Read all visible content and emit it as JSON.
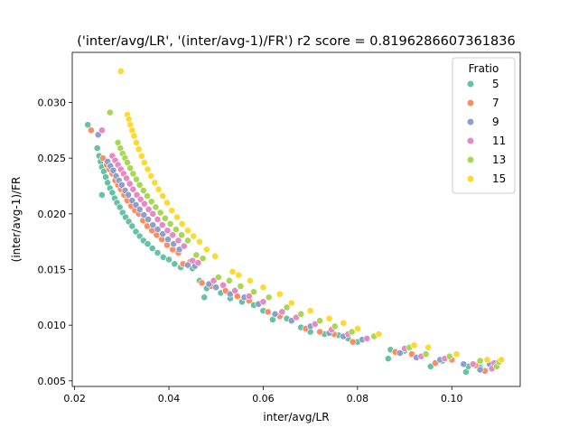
{
  "chart_data": {
    "type": "scatter",
    "title": "('inter/avg/LR', '(inter/avg-1)/FR') r2 score = 0.8196286607361836",
    "xlabel": "inter/avg/LR",
    "ylabel": "(inter/avg-1)/FR",
    "xlim": [
      0.0195,
      0.1145
    ],
    "ylim": [
      0.0045,
      0.0345
    ],
    "xticks": [
      0.02,
      0.04,
      0.06,
      0.08,
      0.1
    ],
    "xtick_labels": [
      "0.02",
      "0.04",
      "0.06",
      "0.08",
      "0.10"
    ],
    "yticks": [
      0.005,
      0.01,
      0.015,
      0.02,
      0.025,
      0.03
    ],
    "ytick_labels": [
      "0.005",
      "0.010",
      "0.015",
      "0.020",
      "0.025",
      "0.030"
    ],
    "grid": false,
    "legend": {
      "title": "Fratio",
      "placement": "top-right"
    },
    "series": [
      {
        "name": "5",
        "color": "#66c2a5",
        "points": [
          [
            0.0228,
            0.028
          ],
          [
            0.0248,
            0.0259
          ],
          [
            0.0252,
            0.0252
          ],
          [
            0.0255,
            0.0247
          ],
          [
            0.0258,
            0.0242
          ],
          [
            0.0262,
            0.0238
          ],
          [
            0.0266,
            0.0233
          ],
          [
            0.027,
            0.0228
          ],
          [
            0.0275,
            0.0223
          ],
          [
            0.028,
            0.0219
          ],
          [
            0.0258,
            0.0217
          ],
          [
            0.0285,
            0.0214
          ],
          [
            0.029,
            0.021
          ],
          [
            0.0296,
            0.0206
          ],
          [
            0.0302,
            0.0201
          ],
          [
            0.0308,
            0.0197
          ],
          [
            0.0315,
            0.0193
          ],
          [
            0.0322,
            0.0189
          ],
          [
            0.033,
            0.0184
          ],
          [
            0.0338,
            0.018
          ],
          [
            0.0346,
            0.0176
          ],
          [
            0.0355,
            0.0173
          ],
          [
            0.0365,
            0.0169
          ],
          [
            0.0376,
            0.0165
          ],
          [
            0.0388,
            0.0161
          ],
          [
            0.04,
            0.0159
          ],
          [
            0.0412,
            0.0155
          ],
          [
            0.0425,
            0.0152
          ],
          [
            0.045,
            0.0151
          ],
          [
            0.0465,
            0.014
          ],
          [
            0.048,
            0.0133
          ],
          [
            0.0475,
            0.0125
          ],
          [
            0.051,
            0.0129
          ],
          [
            0.053,
            0.0124
          ],
          [
            0.0555,
            0.0121
          ],
          [
            0.058,
            0.0118
          ],
          [
            0.06,
            0.0113
          ],
          [
            0.062,
            0.0105
          ],
          [
            0.065,
            0.0106
          ],
          [
            0.068,
            0.0098
          ],
          [
            0.07,
            0.0094
          ],
          [
            0.073,
            0.0092
          ],
          [
            0.076,
            0.0091
          ],
          [
            0.078,
            0.0088
          ],
          [
            0.08,
            0.0085
          ],
          [
            0.0865,
            0.007
          ],
          [
            0.087,
            0.0078
          ],
          [
            0.09,
            0.0077
          ],
          [
            0.0955,
            0.0063
          ],
          [
            0.098,
            0.0068
          ],
          [
            0.103,
            0.0058
          ],
          [
            0.1035,
            0.0063
          ],
          [
            0.106,
            0.0062
          ]
        ]
      },
      {
        "name": "7",
        "color": "#fc8d62",
        "points": [
          [
            0.0235,
            0.0275
          ],
          [
            0.026,
            0.025
          ],
          [
            0.0268,
            0.0244
          ],
          [
            0.0274,
            0.024
          ],
          [
            0.028,
            0.0236
          ],
          [
            0.0286,
            0.023
          ],
          [
            0.0292,
            0.0226
          ],
          [
            0.0298,
            0.0222
          ],
          [
            0.0305,
            0.0217
          ],
          [
            0.0312,
            0.0212
          ],
          [
            0.032,
            0.0207
          ],
          [
            0.0328,
            0.0203
          ],
          [
            0.0336,
            0.02
          ],
          [
            0.0345,
            0.0194
          ],
          [
            0.0354,
            0.0189
          ],
          [
            0.0364,
            0.0185
          ],
          [
            0.0374,
            0.0181
          ],
          [
            0.0385,
            0.0177
          ],
          [
            0.0396,
            0.0172
          ],
          [
            0.0408,
            0.0168
          ],
          [
            0.042,
            0.0165
          ],
          [
            0.043,
            0.0155
          ],
          [
            0.0445,
            0.0157
          ],
          [
            0.047,
            0.0138
          ],
          [
            0.049,
            0.0135
          ],
          [
            0.052,
            0.0131
          ],
          [
            0.0545,
            0.0126
          ],
          [
            0.057,
            0.0122
          ],
          [
            0.061,
            0.0112
          ],
          [
            0.0635,
            0.0108
          ],
          [
            0.069,
            0.0097
          ],
          [
            0.072,
            0.0094
          ],
          [
            0.075,
            0.0092
          ],
          [
            0.079,
            0.0085
          ],
          [
            0.088,
            0.0076
          ],
          [
            0.0915,
            0.0074
          ],
          [
            0.0965,
            0.0066
          ],
          [
            0.1,
            0.0069
          ],
          [
            0.105,
            0.0064
          ],
          [
            0.107,
            0.0059
          ]
        ]
      },
      {
        "name": "9",
        "color": "#8da0cb",
        "points": [
          [
            0.025,
            0.0271
          ],
          [
            0.027,
            0.0247
          ],
          [
            0.0276,
            0.0243
          ],
          [
            0.0282,
            0.0239
          ],
          [
            0.0288,
            0.0234
          ],
          [
            0.0294,
            0.023
          ],
          [
            0.03,
            0.0226
          ],
          [
            0.0307,
            0.0221
          ],
          [
            0.0314,
            0.0217
          ],
          [
            0.0322,
            0.0212
          ],
          [
            0.033,
            0.0208
          ],
          [
            0.0338,
            0.0204
          ],
          [
            0.0347,
            0.0199
          ],
          [
            0.0356,
            0.0195
          ],
          [
            0.0366,
            0.019
          ],
          [
            0.0376,
            0.0186
          ],
          [
            0.0387,
            0.0182
          ],
          [
            0.0398,
            0.0177
          ],
          [
            0.041,
            0.0173
          ],
          [
            0.0422,
            0.0168
          ],
          [
            0.044,
            0.0154
          ],
          [
            0.0455,
            0.0153
          ],
          [
            0.0485,
            0.0137
          ],
          [
            0.05,
            0.0134
          ],
          [
            0.053,
            0.0128
          ],
          [
            0.056,
            0.0125
          ],
          [
            0.059,
            0.0119
          ],
          [
            0.0625,
            0.011
          ],
          [
            0.066,
            0.0104
          ],
          [
            0.07,
            0.0099
          ],
          [
            0.074,
            0.0093
          ],
          [
            0.077,
            0.009
          ],
          [
            0.081,
            0.0087
          ],
          [
            0.089,
            0.0075
          ],
          [
            0.0925,
            0.0071
          ],
          [
            0.0975,
            0.0069
          ],
          [
            0.1025,
            0.0065
          ],
          [
            0.106,
            0.006
          ],
          [
            0.108,
            0.0065
          ]
        ]
      },
      {
        "name": "11",
        "color": "#e78ac3",
        "points": [
          [
            0.0258,
            0.0275
          ],
          [
            0.028,
            0.0252
          ],
          [
            0.0286,
            0.0248
          ],
          [
            0.0292,
            0.0244
          ],
          [
            0.0298,
            0.024
          ],
          [
            0.0304,
            0.0236
          ],
          [
            0.031,
            0.0232
          ],
          [
            0.0317,
            0.0227
          ],
          [
            0.0324,
            0.0222
          ],
          [
            0.0332,
            0.0217
          ],
          [
            0.034,
            0.0213
          ],
          [
            0.0348,
            0.0209
          ],
          [
            0.0357,
            0.0204
          ],
          [
            0.0366,
            0.02
          ],
          [
            0.0376,
            0.0195
          ],
          [
            0.0386,
            0.019
          ],
          [
            0.0397,
            0.0185
          ],
          [
            0.0408,
            0.0181
          ],
          [
            0.042,
            0.0176
          ],
          [
            0.0432,
            0.0171
          ],
          [
            0.045,
            0.0158
          ],
          [
            0.0462,
            0.0156
          ],
          [
            0.0495,
            0.014
          ],
          [
            0.0515,
            0.0136
          ],
          [
            0.054,
            0.0131
          ],
          [
            0.057,
            0.0126
          ],
          [
            0.06,
            0.0121
          ],
          [
            0.064,
            0.0112
          ],
          [
            0.067,
            0.0107
          ],
          [
            0.071,
            0.0101
          ],
          [
            0.0745,
            0.0096
          ],
          [
            0.078,
            0.0092
          ],
          [
            0.082,
            0.0088
          ],
          [
            0.09,
            0.0079
          ],
          [
            0.0935,
            0.0072
          ],
          [
            0.0985,
            0.007
          ],
          [
            0.1045,
            0.0065
          ],
          [
            0.1085,
            0.0061
          ],
          [
            0.109,
            0.0066
          ]
        ]
      },
      {
        "name": "13",
        "color": "#a6d854",
        "points": [
          [
            0.0275,
            0.0291
          ],
          [
            0.0292,
            0.0264
          ],
          [
            0.0297,
            0.0259
          ],
          [
            0.0302,
            0.0254
          ],
          [
            0.0307,
            0.025
          ],
          [
            0.0312,
            0.0246
          ],
          [
            0.0318,
            0.0241
          ],
          [
            0.0324,
            0.0236
          ],
          [
            0.0331,
            0.0231
          ],
          [
            0.0338,
            0.0226
          ],
          [
            0.0346,
            0.0221
          ],
          [
            0.0354,
            0.0216
          ],
          [
            0.0363,
            0.0211
          ],
          [
            0.0372,
            0.0206
          ],
          [
            0.0382,
            0.0201
          ],
          [
            0.0392,
            0.0196
          ],
          [
            0.0403,
            0.0191
          ],
          [
            0.0415,
            0.0186
          ],
          [
            0.0427,
            0.0181
          ],
          [
            0.044,
            0.0176
          ],
          [
            0.0458,
            0.0163
          ],
          [
            0.0472,
            0.016
          ],
          [
            0.0505,
            0.0143
          ],
          [
            0.0528,
            0.014
          ],
          [
            0.0552,
            0.0135
          ],
          [
            0.058,
            0.013
          ],
          [
            0.0612,
            0.0125
          ],
          [
            0.065,
            0.0116
          ],
          [
            0.068,
            0.011
          ],
          [
            0.072,
            0.0104
          ],
          [
            0.0752,
            0.0099
          ],
          [
            0.0788,
            0.0094
          ],
          [
            0.0835,
            0.009
          ],
          [
            0.091,
            0.008
          ],
          [
            0.0945,
            0.0074
          ],
          [
            0.0995,
            0.0072
          ],
          [
            0.106,
            0.0068
          ],
          [
            0.1095,
            0.0063
          ],
          [
            0.11,
            0.0067
          ]
        ]
      },
      {
        "name": "15",
        "color": "#ffd92f",
        "points": [
          [
            0.0298,
            0.0328
          ],
          [
            0.0312,
            0.0289
          ],
          [
            0.0315,
            0.0285
          ],
          [
            0.0318,
            0.028
          ],
          [
            0.0322,
            0.0275
          ],
          [
            0.0326,
            0.027
          ],
          [
            0.0331,
            0.0264
          ],
          [
            0.0336,
            0.0258
          ],
          [
            0.0342,
            0.0252
          ],
          [
            0.0348,
            0.0246
          ],
          [
            0.0355,
            0.024
          ],
          [
            0.0362,
            0.0234
          ],
          [
            0.037,
            0.0228
          ],
          [
            0.0378,
            0.0222
          ],
          [
            0.0387,
            0.0216
          ],
          [
            0.0396,
            0.021
          ],
          [
            0.0406,
            0.0203
          ],
          [
            0.0417,
            0.0197
          ],
          [
            0.0428,
            0.0191
          ],
          [
            0.044,
            0.0185
          ],
          [
            0.0452,
            0.018
          ],
          [
            0.0465,
            0.0175
          ],
          [
            0.048,
            0.0168
          ],
          [
            0.0498,
            0.0162
          ],
          [
            0.0535,
            0.0148
          ],
          [
            0.0548,
            0.0145
          ],
          [
            0.0572,
            0.014
          ],
          [
            0.06,
            0.0134
          ],
          [
            0.0635,
            0.0128
          ],
          [
            0.066,
            0.012
          ],
          [
            0.07,
            0.0113
          ],
          [
            0.074,
            0.0106
          ],
          [
            0.077,
            0.0102
          ],
          [
            0.08,
            0.0097
          ],
          [
            0.0845,
            0.0092
          ],
          [
            0.092,
            0.0082
          ],
          [
            0.095,
            0.008
          ],
          [
            0.101,
            0.0074
          ],
          [
            0.1075,
            0.0069
          ],
          [
            0.1105,
            0.0069
          ]
        ]
      }
    ]
  }
}
